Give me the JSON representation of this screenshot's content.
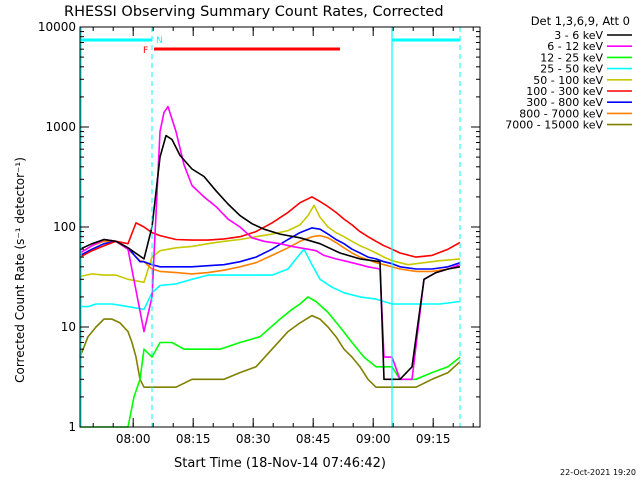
{
  "chart_data": {
    "type": "line",
    "title": "RHESSI Observing Summary Count Rates, Corrected",
    "xlabel": "Start Time (18-Nov-14 07:46:42)",
    "ylabel": "Corrected Count Rate (s⁻¹ detector⁻¹)",
    "yscale": "log",
    "ylim": [
      1,
      10000
    ],
    "xlim_minutes_after_0746": [
      0,
      100
    ],
    "x_ticks": [
      {
        "t": 13.3,
        "label": "08:00"
      },
      {
        "t": 28.3,
        "label": "08:15"
      },
      {
        "t": 43.3,
        "label": "08:30"
      },
      {
        "t": 58.3,
        "label": "08:45"
      },
      {
        "t": 73.3,
        "label": "09:00"
      },
      {
        "t": 88.3,
        "label": "09:15"
      }
    ],
    "y_ticks": [
      {
        "v": 1,
        "label": "1"
      },
      {
        "v": 10,
        "label": "10"
      },
      {
        "v": 100,
        "label": "100"
      },
      {
        "v": 1000,
        "label": "1000"
      },
      {
        "v": 10000,
        "label": "10000"
      }
    ],
    "legend_title": "Det 1,3,6,9, Att 0",
    "legend_position": "right, outside plot",
    "series": [
      {
        "name": "3 - 6 keV",
        "color": "#000000",
        "x": [
          0,
          3,
          6,
          9,
          12,
          16,
          18,
          20,
          21.5,
          23,
          25,
          28,
          31,
          34,
          37,
          40,
          43,
          46,
          50,
          55,
          60,
          65,
          70,
          75,
          76,
          78,
          80,
          83,
          86,
          89,
          92,
          95
        ],
        "y": [
          60,
          68,
          75,
          72,
          62,
          48,
          100,
          500,
          820,
          750,
          520,
          380,
          320,
          230,
          170,
          130,
          108,
          95,
          85,
          78,
          68,
          55,
          48,
          45,
          3,
          3,
          3,
          4,
          30,
          35,
          38,
          40
        ]
      },
      {
        "name": "6 - 12 keV",
        "color": "#ff00ff",
        "x": [
          0,
          3,
          6,
          9,
          12,
          16,
          18,
          20,
          21,
          22,
          24,
          26,
          28,
          31,
          34,
          37,
          40,
          43,
          46,
          50,
          53,
          55,
          57,
          59,
          61,
          64,
          67,
          70,
          72,
          75,
          76,
          78,
          80,
          83,
          86,
          89,
          92,
          95
        ],
        "y": [
          55,
          65,
          75,
          72,
          60,
          9,
          20,
          900,
          1400,
          1600,
          900,
          420,
          260,
          200,
          160,
          120,
          100,
          78,
          72,
          68,
          64,
          62,
          60,
          58,
          52,
          48,
          45,
          42,
          40,
          38,
          5,
          5,
          3,
          3,
          30,
          35,
          38,
          42
        ]
      },
      {
        "name": "12 - 25 keV",
        "color": "#00ff00",
        "x": [
          0,
          3,
          6,
          9,
          12,
          13.5,
          15,
          16,
          18,
          20,
          23,
          26,
          30,
          35,
          40,
          45,
          50,
          53,
          55,
          57,
          59,
          62,
          65,
          68,
          71,
          74,
          76,
          78,
          80,
          84,
          88,
          92,
          95
        ],
        "y": [
          1,
          1,
          1,
          1,
          1,
          2,
          3,
          6,
          5,
          7,
          7,
          6,
          6,
          6,
          7,
          8,
          12,
          15,
          17,
          20,
          18,
          14,
          10,
          7,
          5,
          4,
          4,
          4,
          3,
          3,
          3.5,
          4,
          5
        ]
      },
      {
        "name": "25 - 50 keV",
        "color": "#00ffff",
        "x": [
          0,
          2,
          4,
          8,
          12,
          16,
          18,
          20,
          24,
          28,
          32,
          36,
          40,
          44,
          48,
          52,
          54,
          56,
          58,
          60,
          63,
          66,
          70,
          74,
          76,
          78,
          82,
          86,
          90,
          95
        ],
        "y": [
          16,
          16,
          17,
          17,
          16,
          15,
          22,
          26,
          27,
          30,
          33,
          33,
          33,
          33,
          33,
          38,
          48,
          60,
          42,
          30,
          25,
          22,
          20,
          19,
          18,
          17,
          17,
          17,
          17,
          18
        ]
      },
      {
        "name": "50 - 100 keV",
        "color": "#c8c800",
        "x": [
          0,
          3,
          6,
          9,
          12,
          16,
          18,
          20,
          24,
          28,
          32,
          36,
          40,
          44,
          48,
          52,
          55,
          57,
          58.5,
          60,
          62,
          64,
          66,
          68,
          70,
          72,
          74,
          76,
          78,
          82,
          86,
          90,
          95
        ],
        "y": [
          32,
          34,
          33,
          33,
          30,
          28,
          50,
          58,
          62,
          64,
          68,
          72,
          75,
          80,
          85,
          92,
          105,
          130,
          165,
          125,
          100,
          88,
          80,
          72,
          65,
          60,
          55,
          50,
          46,
          42,
          44,
          46,
          48
        ]
      },
      {
        "name": "100 - 300 keV",
        "color": "#ff0000",
        "x": [
          0,
          3,
          6,
          9,
          12,
          14,
          15,
          16,
          18,
          20,
          24,
          28,
          32,
          36,
          40,
          44,
          48,
          52,
          55,
          58,
          60,
          62,
          64,
          66,
          68,
          70,
          72,
          74,
          76,
          78,
          80,
          84,
          88,
          92,
          95
        ],
        "y": [
          50,
          58,
          65,
          72,
          68,
          110,
          105,
          100,
          88,
          82,
          75,
          74,
          74,
          76,
          80,
          90,
          110,
          140,
          175,
          200,
          180,
          160,
          140,
          120,
          105,
          90,
          80,
          72,
          65,
          60,
          55,
          50,
          52,
          60,
          70
        ]
      },
      {
        "name": "300 - 800 keV",
        "color": "#0000ff",
        "x": [
          0,
          3,
          6,
          9,
          12,
          15,
          16,
          18,
          20,
          24,
          28,
          32,
          36,
          40,
          44,
          48,
          52,
          55,
          58,
          60,
          62,
          64,
          66,
          68,
          70,
          72,
          74,
          76,
          78,
          80,
          84,
          88,
          92,
          95
        ],
        "y": [
          52,
          60,
          68,
          72,
          62,
          45,
          45,
          42,
          40,
          40,
          40,
          41,
          42,
          45,
          50,
          60,
          75,
          88,
          98,
          95,
          85,
          75,
          68,
          60,
          55,
          50,
          48,
          45,
          43,
          40,
          38,
          38,
          40,
          44
        ]
      },
      {
        "name": "800 - 7000 keV",
        "color": "#ff8000",
        "x": [
          0,
          3,
          6,
          9,
          12,
          15,
          16,
          18,
          20,
          24,
          28,
          32,
          36,
          40,
          44,
          48,
          52,
          55,
          58,
          60,
          62,
          64,
          66,
          68,
          70,
          72,
          74,
          76,
          78,
          80,
          84,
          88,
          92,
          95
        ],
        "y": [
          55,
          65,
          72,
          72,
          60,
          46,
          45,
          38,
          36,
          35,
          34,
          35,
          37,
          40,
          44,
          52,
          62,
          72,
          80,
          82,
          78,
          70,
          62,
          55,
          50,
          47,
          44,
          42,
          40,
          38,
          36,
          36,
          38,
          42
        ]
      },
      {
        "name": "7000 - 15000 keV",
        "color": "#808000",
        "x": [
          0,
          2,
          4,
          6,
          8,
          10,
          12,
          13,
          14,
          15,
          16,
          20,
          24,
          28,
          32,
          36,
          40,
          44,
          48,
          52,
          55,
          58,
          60,
          62,
          64,
          66,
          68,
          70,
          72,
          74,
          76,
          80,
          84,
          88,
          92,
          95
        ],
        "y": [
          5,
          8,
          10,
          12,
          12,
          11,
          9,
          7,
          5,
          3,
          2.5,
          2.5,
          2.5,
          3,
          3,
          3,
          3.5,
          4,
          6,
          9,
          11,
          13,
          12,
          10,
          8,
          6,
          5,
          4,
          3,
          2.5,
          2.5,
          2.5,
          2.5,
          3,
          3.5,
          4.5
        ]
      }
    ],
    "flags": [
      {
        "label": "N",
        "color": "#00ffff",
        "note": "night segment bars at top",
        "t0": 0,
        "t1": 18,
        "t2": 78,
        "t3": 95
      },
      {
        "label": "F",
        "color": "#ff0000",
        "note": "flare flag bar",
        "t0": 18.5,
        "t1": 65
      }
    ],
    "footer_date": "22-Oct-2021 19:20"
  }
}
